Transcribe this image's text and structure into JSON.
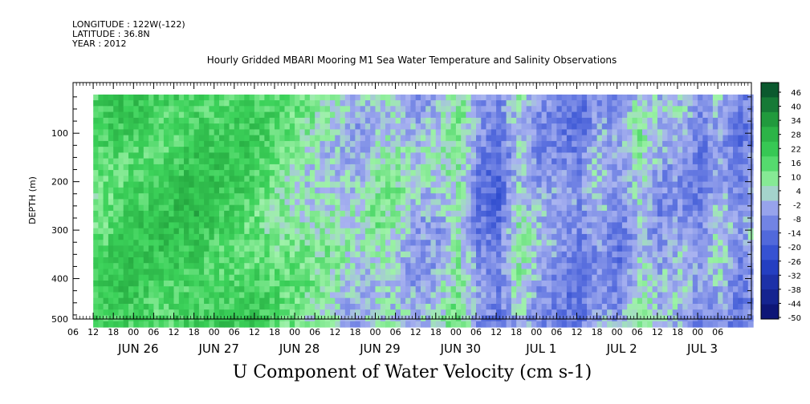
{
  "header": {
    "longitude": "LONGITUDE : 122W(-122)",
    "latitude": "LATITUDE : 36.8N",
    "year": "YEAR : 2012"
  },
  "chart_data": {
    "type": "heatmap",
    "title": "Hourly Gridded MBARI Mooring M1 Sea Water Temperature and Salinity Observations",
    "xlabel": "U Component of Water Velocity (cm s-1)",
    "ylabel": "DEPTH (m)",
    "yticks": [
      100,
      200,
      300,
      400,
      500
    ],
    "ylim": [
      500,
      12
    ],
    "y_reversed": true,
    "x_hour_ticks": [
      "06",
      "12",
      "18",
      "00",
      "06",
      "12",
      "18",
      "00",
      "06",
      "12",
      "18",
      "00",
      "06",
      "12",
      "18",
      "00",
      "06",
      "12",
      "18",
      "00",
      "06",
      "12",
      "18",
      "00",
      "06",
      "12",
      "18",
      "00",
      "06",
      "12",
      "18",
      "00",
      "06"
    ],
    "x_day_labels": [
      "JUN 26",
      "JUN 27",
      "JUN 28",
      "JUN 29",
      "JUN 30",
      "JUL  1",
      "JUL  2",
      "JUL  3"
    ],
    "time_range_hours": [
      0,
      202
    ],
    "data_start_hours": 6,
    "colorbar_levels": [
      -50,
      -44,
      -38,
      -32,
      -26,
      -20,
      -14,
      -8,
      -2,
      4,
      10,
      16,
      22,
      28,
      34,
      40,
      46
    ],
    "colorbar_labels": [
      "46",
      "40",
      "34",
      "28",
      "22",
      "16",
      "10",
      "4",
      "-2",
      "-8",
      "-14",
      "-20",
      "-26",
      "-32",
      "-38",
      "-44",
      "-50"
    ],
    "time_depth_profile": {
      "hours": [
        6,
        12,
        18,
        24,
        30,
        36,
        42,
        48,
        54,
        60,
        66,
        72,
        78,
        84,
        90,
        96,
        102,
        108,
        114,
        120,
        126,
        132,
        138,
        144,
        150,
        156,
        162,
        168,
        174,
        180,
        186,
        192,
        198,
        202
      ],
      "mean_u": [
        12,
        16,
        18,
        16,
        18,
        20,
        17,
        16,
        14,
        10,
        6,
        4,
        2,
        -2,
        4,
        2,
        -4,
        -2,
        6,
        -10,
        -14,
        2,
        -6,
        -8,
        -12,
        -4,
        -10,
        2,
        -6,
        -4,
        -10,
        -2,
        -12,
        -4
      ]
    },
    "colors": {
      "strong_positive": "#06492a",
      "positive": "#2fc04a",
      "weak_positive": "#9ef2a8",
      "weak_negative": "#a9b3f0",
      "negative": "#5f74e0",
      "strong_negative": "#0a0f6b"
    }
  }
}
